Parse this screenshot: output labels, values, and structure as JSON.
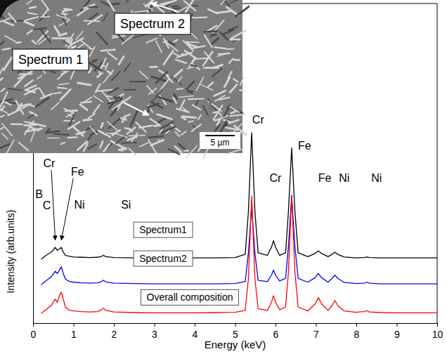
{
  "chart_data": {
    "type": "line",
    "x_label": "Energy (keV)",
    "y_label": "Intensity (arb.units)",
    "xlim": [
      0,
      10
    ],
    "xticks": [
      0,
      1,
      2,
      3,
      4,
      5,
      6,
      7,
      8,
      9,
      10
    ],
    "ylim": [
      0,
      100
    ],
    "tick_labels": "x",
    "x": [
      0.2,
      0.3,
      0.4,
      0.45,
      0.5,
      0.55,
      0.6,
      0.65,
      0.7,
      0.75,
      0.8,
      0.9,
      1.0,
      1.2,
      1.4,
      1.6,
      1.7,
      1.74,
      1.8,
      2.0,
      2.5,
      3.0,
      3.5,
      4.0,
      4.5,
      5.0,
      5.25,
      5.33,
      5.41,
      5.49,
      5.57,
      5.8,
      5.9,
      5.95,
      6.0,
      6.1,
      6.25,
      6.32,
      6.4,
      6.48,
      6.56,
      6.8,
      6.98,
      7.06,
      7.14,
      7.3,
      7.4,
      7.47,
      7.54,
      7.7,
      8.0,
      8.2,
      8.26,
      8.32,
      8.6,
      9.0,
      9.5,
      10.0
    ],
    "series": [
      {
        "name": "Spectrum1",
        "color": "#000000",
        "values": [
          20.0,
          21.0,
          21.8,
          22.2,
          22.8,
          23.7,
          22.8,
          23.2,
          23.7,
          22.2,
          21.2,
          20.9,
          20.7,
          20.6,
          20.5,
          20.6,
          20.9,
          21.2,
          20.8,
          20.5,
          20.4,
          20.4,
          20.4,
          20.4,
          20.4,
          20.5,
          21.5,
          35.0,
          59.6,
          35.0,
          22.0,
          21.2,
          23.8,
          25.8,
          23.8,
          21.2,
          22.0,
          35.0,
          54.8,
          35.0,
          22.0,
          20.8,
          21.8,
          22.6,
          21.8,
          20.8,
          21.5,
          22.2,
          21.5,
          20.7,
          20.4,
          20.5,
          20.7,
          20.5,
          20.4,
          20.4,
          20.4,
          20.4
        ]
      },
      {
        "name": "Spectrum2",
        "color": "#0000ff",
        "values": [
          12.0,
          13.0,
          14.0,
          14.5,
          15.3,
          16.2,
          15.5,
          16.5,
          17.6,
          15.5,
          13.8,
          13.0,
          12.8,
          12.6,
          12.5,
          12.6,
          13.0,
          13.4,
          12.9,
          12.5,
          12.4,
          12.3,
          12.3,
          12.3,
          12.3,
          12.4,
          13.0,
          22.0,
          36.6,
          22.0,
          13.4,
          13.0,
          15.0,
          16.6,
          15.0,
          13.2,
          14.0,
          24.0,
          39.8,
          24.0,
          14.0,
          12.8,
          14.2,
          15.5,
          14.2,
          12.8,
          14.0,
          15.0,
          14.0,
          12.7,
          12.4,
          12.5,
          12.8,
          12.5,
          12.3,
          12.3,
          12.3,
          12.3
        ]
      },
      {
        "name": "Overall composition",
        "color": "#ff0000",
        "values": [
          3.0,
          4.0,
          5.0,
          5.5,
          6.5,
          7.5,
          6.5,
          8.5,
          9.7,
          7.5,
          5.0,
          4.0,
          3.8,
          3.6,
          3.5,
          3.6,
          4.2,
          4.7,
          4.0,
          3.5,
          3.3,
          3.2,
          3.2,
          3.2,
          3.3,
          3.4,
          4.0,
          14.0,
          39.8,
          14.0,
          4.5,
          4.0,
          6.5,
          8.6,
          6.5,
          4.2,
          5.0,
          16.0,
          40.0,
          16.0,
          5.0,
          3.8,
          6.0,
          8.0,
          6.0,
          4.0,
          5.5,
          7.1,
          5.5,
          3.8,
          3.4,
          3.6,
          3.9,
          3.5,
          3.3,
          3.2,
          3.2,
          3.2
        ]
      }
    ],
    "annotations": [
      {
        "text": "B",
        "x": 0.15,
        "y": 39.1
      },
      {
        "text": "C",
        "x": 0.34,
        "y": 35.5
      },
      {
        "text": "Cr",
        "x": 0.4,
        "y": 48.8,
        "arrow": [
          0.55,
          26
        ]
      },
      {
        "text": "Fe",
        "x": 1.1,
        "y": 46.2,
        "arrow": [
          0.7,
          26
        ]
      },
      {
        "text": "Ni",
        "x": 1.15,
        "y": 35.9
      },
      {
        "text": "Si",
        "x": 2.3,
        "y": 35.9
      },
      {
        "text": "Cr",
        "x": 5.57,
        "y": 62.4
      },
      {
        "text": "Cr",
        "x": 6.0,
        "y": 44.1
      },
      {
        "text": "Fe",
        "x": 6.72,
        "y": 54.2
      },
      {
        "text": "Fe",
        "x": 7.22,
        "y": 44.1
      },
      {
        "text": "Ni",
        "x": 7.7,
        "y": 44.1
      },
      {
        "text": "Ni",
        "x": 8.5,
        "y": 44.1
      }
    ],
    "inset": {
      "labels": [
        "Spectrum 2",
        "Spectrum 1"
      ],
      "scale_bar": "5 µm"
    }
  }
}
